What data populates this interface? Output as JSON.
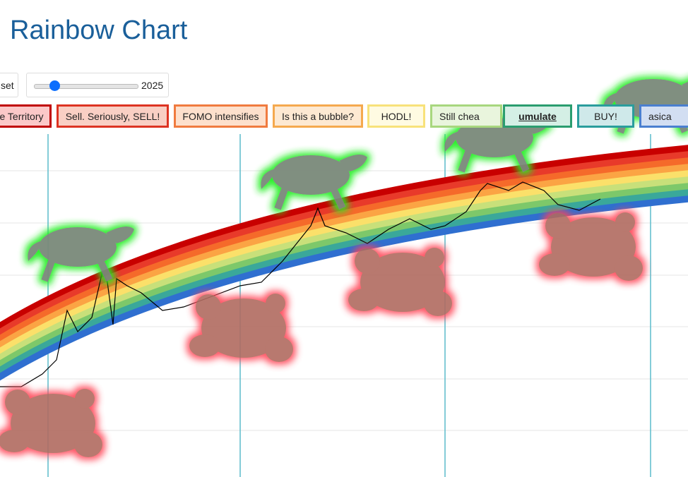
{
  "header": {
    "title": "Rainbow Chart"
  },
  "controls": {
    "reset": "set",
    "year": "2025"
  },
  "legend": [
    "e Territory",
    "Sell. Seriously, SELL!",
    "FOMO intensifies",
    "Is this a bubble?",
    "HODL!",
    "Still chea",
    "umulate",
    "BUY!",
    "asica"
  ]
}
